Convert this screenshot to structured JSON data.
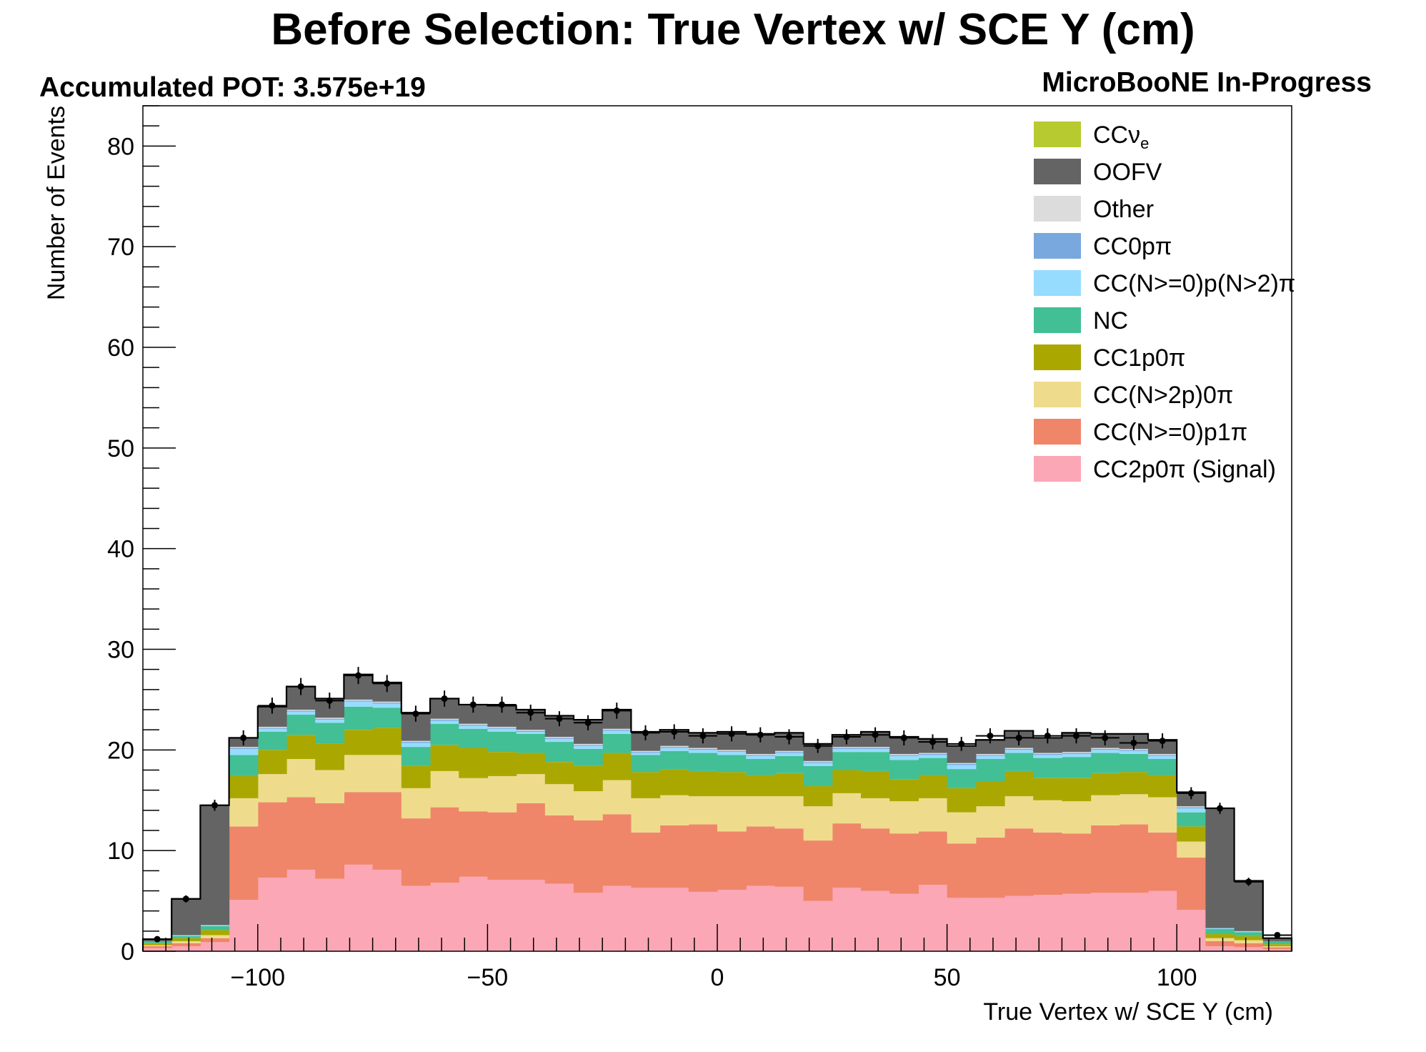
{
  "chart_data": {
    "type": "bar",
    "stacked": true,
    "title": "Before Selection: True Vertex w/ SCE Y (cm)",
    "pot_label": "Accumulated POT: 3.575e+19",
    "experiment_label": "MicroBooNE In-Progress",
    "xlabel": "True Vertex w/ SCE Y (cm)",
    "ylabel": "Number of Events",
    "xlim": [
      -125,
      125
    ],
    "ylim": [
      0,
      84
    ],
    "x_ticks": [
      -100,
      -50,
      0,
      50,
      100
    ],
    "x_tick_labels": [
      "−100",
      "−50",
      "0",
      "50",
      "100"
    ],
    "y_ticks": [
      0,
      10,
      20,
      30,
      40,
      50,
      60,
      70,
      80
    ],
    "y_tick_labels": [
      "0",
      "10",
      "20",
      "30",
      "40",
      "50",
      "60",
      "70",
      "80"
    ],
    "grid": false,
    "legend_position": "top-right",
    "bin_edges": [
      -125,
      -118.75,
      -112.5,
      -106.25,
      -100,
      -93.75,
      -87.5,
      -81.25,
      -75,
      -68.75,
      -62.5,
      -56.25,
      -50,
      -43.75,
      -37.5,
      -31.25,
      -25,
      -18.75,
      -12.5,
      -6.25,
      0,
      6.25,
      12.5,
      18.75,
      25,
      31.25,
      37.5,
      43.75,
      50,
      56.25,
      62.5,
      68.75,
      75,
      81.25,
      87.5,
      93.75,
      100,
      106.25,
      112.5,
      118.75,
      125
    ],
    "series": [
      {
        "name": "CC2p0π (Signal)",
        "color": "#fca7b6",
        "values": [
          0.3,
          0.5,
          0.9,
          5.1,
          7.3,
          8.1,
          7.2,
          8.6,
          8.1,
          6.5,
          6.8,
          7.4,
          7.1,
          7.1,
          6.7,
          5.8,
          6.5,
          6.3,
          6.3,
          5.9,
          6.1,
          6.5,
          6.4,
          5.0,
          6.3,
          6.0,
          5.7,
          6.6,
          5.3,
          5.3,
          5.5,
          5.6,
          5.7,
          5.8,
          5.8,
          6.0,
          4.1,
          0.5,
          0.4,
          0.2
        ]
      },
      {
        "name": "CC(N>=0)p1π",
        "color": "#ef8669",
        "values": [
          0.2,
          0.3,
          0.4,
          7.3,
          7.5,
          7.2,
          7.5,
          7.2,
          7.7,
          6.7,
          7.5,
          6.5,
          6.7,
          7.6,
          6.8,
          7.2,
          7.1,
          5.5,
          6.2,
          6.7,
          5.8,
          5.9,
          5.8,
          6.0,
          6.4,
          6.2,
          6.0,
          5.3,
          5.4,
          6.0,
          6.7,
          6.2,
          6.0,
          6.7,
          6.8,
          5.8,
          5.2,
          0.5,
          0.4,
          0.2
        ]
      },
      {
        "name": "CC(N>2p)0π",
        "color": "#eedc8c",
        "values": [
          0.1,
          0.2,
          0.3,
          2.8,
          2.8,
          3.8,
          3.3,
          3.7,
          3.7,
          3.0,
          3.6,
          3.3,
          3.6,
          2.9,
          3.1,
          2.9,
          3.4,
          3.4,
          3.0,
          2.8,
          3.5,
          3.0,
          3.2,
          3.4,
          3.0,
          3.0,
          3.2,
          3.3,
          3.1,
          3.1,
          3.2,
          3.2,
          3.2,
          3.0,
          3.0,
          3.5,
          1.6,
          0.3,
          0.3,
          0.1
        ]
      },
      {
        "name": "CC1p0π",
        "color": "#aaa800",
        "values": [
          0.2,
          0.3,
          0.5,
          2.2,
          2.4,
          2.4,
          2.6,
          2.5,
          2.7,
          2.2,
          2.6,
          3.0,
          2.4,
          2.1,
          2.2,
          2.5,
          2.7,
          2.6,
          2.6,
          2.5,
          2.4,
          2.1,
          2.3,
          2.0,
          2.3,
          2.7,
          2.2,
          2.3,
          2.4,
          2.5,
          2.5,
          2.2,
          2.3,
          2.2,
          2.2,
          2.2,
          1.5,
          0.4,
          0.4,
          0.2
        ]
      },
      {
        "name": "NC",
        "color": "#42bf95",
        "values": [
          0.2,
          0.2,
          0.4,
          2.1,
          1.8,
          2.0,
          2.1,
          2.3,
          2.0,
          1.9,
          2.1,
          1.9,
          2.0,
          1.9,
          2.0,
          1.7,
          1.9,
          1.7,
          1.8,
          1.8,
          1.7,
          1.6,
          1.7,
          2.0,
          1.8,
          1.9,
          1.9,
          1.7,
          1.9,
          2.2,
          1.8,
          2.0,
          2.1,
          2.0,
          1.8,
          1.6,
          1.4,
          0.5,
          0.4,
          0.3
        ]
      },
      {
        "name": "CC(N>=0)p(N>2)π",
        "color": "#96dcff",
        "values": [
          0.0,
          0.1,
          0.1,
          0.6,
          0.3,
          0.3,
          0.3,
          0.5,
          0.4,
          0.4,
          0.3,
          0.3,
          0.3,
          0.2,
          0.3,
          0.3,
          0.3,
          0.2,
          0.3,
          0.3,
          0.3,
          0.3,
          0.3,
          0.3,
          0.3,
          0.3,
          0.4,
          0.3,
          0.4,
          0.3,
          0.3,
          0.3,
          0.3,
          0.3,
          0.3,
          0.3,
          0.4,
          0.1,
          0.1,
          0.0
        ]
      },
      {
        "name": "CC0pπ",
        "color": "#78a8dd",
        "values": [
          0.0,
          0.0,
          0.0,
          0.1,
          0.1,
          0.1,
          0.1,
          0.1,
          0.1,
          0.1,
          0.1,
          0.1,
          0.1,
          0.1,
          0.1,
          0.1,
          0.1,
          0.1,
          0.1,
          0.1,
          0.1,
          0.1,
          0.1,
          0.1,
          0.1,
          0.1,
          0.1,
          0.1,
          0.1,
          0.1,
          0.1,
          0.1,
          0.1,
          0.1,
          0.1,
          0.1,
          0.1,
          0.0,
          0.0,
          0.0
        ]
      },
      {
        "name": "Other",
        "color": "#dcdcdc",
        "values": [
          0.0,
          0.0,
          0.0,
          0.1,
          0.1,
          0.1,
          0.1,
          0.1,
          0.1,
          0.1,
          0.1,
          0.1,
          0.1,
          0.1,
          0.1,
          0.1,
          0.1,
          0.1,
          0.1,
          0.1,
          0.1,
          0.1,
          0.1,
          0.1,
          0.1,
          0.1,
          0.1,
          0.1,
          0.1,
          0.1,
          0.1,
          0.1,
          0.1,
          0.1,
          0.1,
          0.1,
          0.1,
          0.0,
          0.0,
          0.0
        ]
      },
      {
        "name": "OOFV",
        "color": "#646464",
        "values": [
          0.2,
          3.6,
          11.9,
          0.9,
          2.0,
          2.3,
          1.9,
          2.5,
          1.9,
          2.8,
          2.0,
          1.9,
          2.1,
          2.0,
          2.1,
          2.4,
          1.9,
          1.9,
          1.6,
          1.5,
          1.8,
          2.0,
          1.8,
          1.7,
          1.2,
          1.5,
          1.7,
          1.4,
          1.7,
          1.4,
          1.7,
          1.5,
          1.9,
          1.4,
          1.5,
          1.4,
          1.4,
          11.9,
          5.0,
          0.3
        ]
      },
      {
        "name": "CCν",
        "name_subscript": "e",
        "color": "#b7cb30",
        "values": [
          0,
          0,
          0,
          0,
          0,
          0,
          0,
          0,
          0,
          0,
          0,
          0,
          0,
          0,
          0,
          0,
          0,
          0,
          0,
          0,
          0,
          0,
          0,
          0,
          0,
          0,
          0,
          0,
          0,
          0,
          0,
          0,
          0,
          0,
          0,
          0,
          0,
          0,
          0,
          0
        ]
      }
    ],
    "data_points": {
      "values": [
        1.2,
        5.2,
        14.5,
        21.2,
        24.4,
        26.3,
        24.9,
        27.4,
        26.6,
        23.6,
        25.1,
        24.5,
        24.5,
        23.7,
        23.1,
        22.7,
        23.9,
        21.7,
        21.8,
        21.4,
        21.6,
        21.5,
        21.3,
        20.4,
        21.3,
        21.5,
        21.2,
        20.8,
        20.6,
        21.4,
        21.2,
        21.4,
        21.4,
        21.2,
        20.7,
        20.9,
        15.7,
        14.2,
        6.9,
        1.6
      ],
      "errors": [
        0.15,
        0.35,
        0.55,
        0.75,
        0.8,
        0.85,
        0.8,
        0.85,
        0.85,
        0.8,
        0.8,
        0.8,
        0.8,
        0.8,
        0.75,
        0.75,
        0.8,
        0.75,
        0.75,
        0.75,
        0.75,
        0.75,
        0.75,
        0.7,
        0.75,
        0.75,
        0.75,
        0.75,
        0.7,
        0.75,
        0.75,
        0.75,
        0.75,
        0.75,
        0.7,
        0.75,
        0.6,
        0.55,
        0.4,
        0.2
      ]
    }
  }
}
